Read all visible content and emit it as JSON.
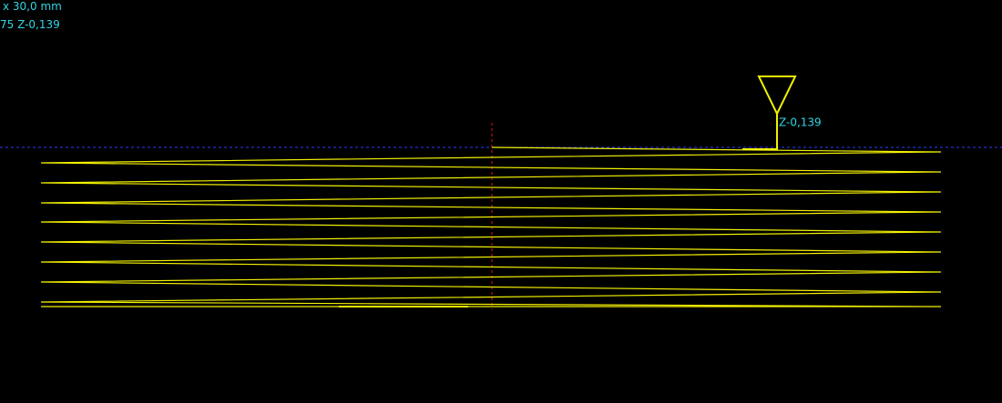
{
  "status": {
    "scale": "x 30,0 mm",
    "position": "75 Z-0,139"
  },
  "tool": {
    "label": "Z-0,139"
  }
}
